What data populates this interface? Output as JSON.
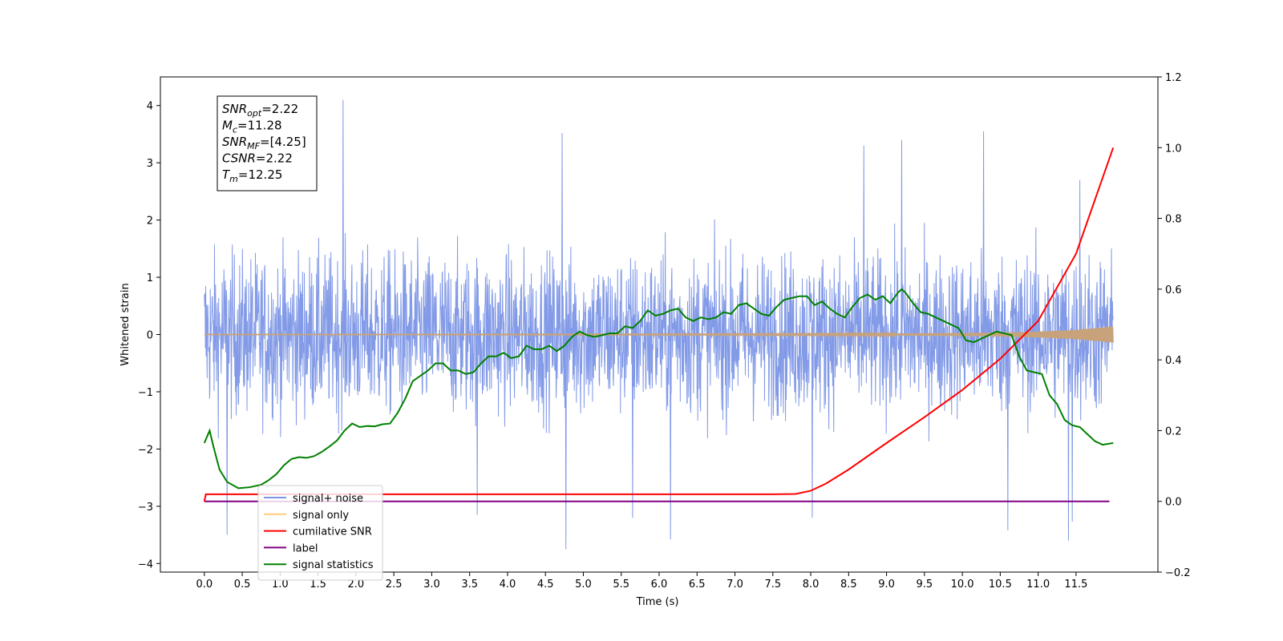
{
  "chart_data": {
    "type": "line",
    "xlabel": "Time (s)",
    "ylabel": "Whitened strain",
    "xlim": [
      -0.58,
      12.58
    ],
    "ylim": [
      -4.15,
      4.5
    ],
    "y2lim": [
      -0.2,
      1.2
    ],
    "x_ticks": [
      "0.0",
      "0.5",
      "1.0",
      "1.5",
      "2.0",
      "2.5",
      "3.0",
      "3.5",
      "4.0",
      "4.5",
      "5.0",
      "5.5",
      "6.0",
      "6.5",
      "7.0",
      "7.5",
      "8.0",
      "8.5",
      "9.0",
      "9.5",
      "10.0",
      "10.5",
      "11.0",
      "11.5"
    ],
    "y_ticks": [
      "−4",
      "−3",
      "−2",
      "−1",
      "0",
      "1",
      "2",
      "3",
      "4"
    ],
    "y2_ticks": [
      "−0.2",
      "0.0",
      "0.2",
      "0.4",
      "0.6",
      "0.8",
      "1.0",
      "1.2"
    ],
    "grid": false,
    "annotation": {
      "lines": [
        {
          "main": "SNR",
          "sub": "opt",
          "value": "=2.22"
        },
        {
          "main": "M",
          "sub": "c",
          "value": "=11.28"
        },
        {
          "main": "SNR",
          "sub": "MF",
          "value": "=[4.25]"
        },
        {
          "main": "CSNR",
          "sub": "",
          "value": "=2.22"
        },
        {
          "main": "T",
          "sub": "m",
          "value": "=12.25"
        }
      ]
    },
    "legend": {
      "position": "lower-left",
      "entries": [
        {
          "label": "signal+ noise",
          "color": "#7b95e6"
        },
        {
          "label": "signal only",
          "color": "#fdcb7b"
        },
        {
          "label": "cumilative SNR",
          "color": "#ff0000"
        },
        {
          "label": "label",
          "color": "#800080"
        },
        {
          "label": "signal statistics",
          "color": "#008000"
        }
      ]
    },
    "series": [
      {
        "name": "signal+ noise",
        "axis": "left",
        "color": "#7b95e6",
        "description_stats": {
          "x_start": 0.0,
          "x_end": 11.99,
          "typical_range": [
            -2.2,
            2.2
          ],
          "max": 4.1,
          "min": -3.75
        },
        "peaks": [
          {
            "x": 1.83,
            "y": 4.1
          },
          {
            "x": 10.28,
            "y": 3.55
          },
          {
            "x": 4.72,
            "y": 3.52
          },
          {
            "x": 9.2,
            "y": 3.4
          },
          {
            "x": 8.7,
            "y": 3.3
          },
          {
            "x": 11.55,
            "y": 2.7
          },
          {
            "x": 4.77,
            "y": -3.75
          },
          {
            "x": 11.4,
            "y": -3.6
          },
          {
            "x": 6.15,
            "y": -3.58
          },
          {
            "x": 0.3,
            "y": -3.5
          },
          {
            "x": 10.6,
            "y": -3.42
          },
          {
            "x": 11.45,
            "y": -3.27
          },
          {
            "x": 8.02,
            "y": -3.2
          },
          {
            "x": 5.65,
            "y": -3.2
          },
          {
            "x": 3.6,
            "y": -3.15
          }
        ]
      },
      {
        "name": "signal only",
        "axis": "left",
        "color": "#c8a27a",
        "x": [
          0,
          2,
          4,
          6,
          8,
          9,
          10,
          10.5,
          11,
          11.5,
          11.99
        ],
        "amplitude": [
          0.004,
          0.005,
          0.006,
          0.008,
          0.012,
          0.016,
          0.025,
          0.033,
          0.05,
          0.08,
          0.14
        ]
      },
      {
        "name": "cumilative SNR",
        "axis": "right",
        "color": "#ff0000",
        "x": [
          0,
          0.02,
          7.5,
          7.8,
          8.0,
          8.2,
          8.5,
          9.0,
          9.5,
          10.0,
          10.5,
          11.0,
          11.5,
          11.99
        ],
        "y": [
          0.0,
          0.02,
          0.02,
          0.021,
          0.03,
          0.05,
          0.09,
          0.165,
          0.238,
          0.315,
          0.403,
          0.51,
          0.7,
          1.0
        ]
      },
      {
        "name": "label",
        "axis": "right",
        "color": "#800080",
        "x": [
          0,
          11.94
        ],
        "y": [
          0.0,
          0.0
        ]
      },
      {
        "name": "signal statistics",
        "axis": "right",
        "color": "#008000",
        "x": [
          0.0,
          0.07,
          0.12,
          0.2,
          0.3,
          0.45,
          0.6,
          0.75,
          0.85,
          0.95,
          1.05,
          1.15,
          1.25,
          1.35,
          1.45,
          1.55,
          1.65,
          1.75,
          1.85,
          1.95,
          2.05,
          2.15,
          2.25,
          2.35,
          2.45,
          2.55,
          2.65,
          2.75,
          2.85,
          2.95,
          3.05,
          3.15,
          3.25,
          3.35,
          3.45,
          3.55,
          3.65,
          3.75,
          3.85,
          3.95,
          4.05,
          4.15,
          4.25,
          4.35,
          4.45,
          4.55,
          4.65,
          4.75,
          4.85,
          4.95,
          5.05,
          5.15,
          5.25,
          5.35,
          5.45,
          5.55,
          5.65,
          5.75,
          5.85,
          5.95,
          6.05,
          6.15,
          6.25,
          6.35,
          6.45,
          6.55,
          6.65,
          6.75,
          6.85,
          6.95,
          7.05,
          7.15,
          7.25,
          7.35,
          7.45,
          7.55,
          7.65,
          7.75,
          7.85,
          7.95,
          8.05,
          8.15,
          8.25,
          8.35,
          8.45,
          8.55,
          8.65,
          8.75,
          8.85,
          8.95,
          9.05,
          9.15,
          9.2,
          9.25,
          9.35,
          9.45,
          9.55,
          9.65,
          9.75,
          9.85,
          9.95,
          10.05,
          10.15,
          10.25,
          10.35,
          10.45,
          10.55,
          10.65,
          10.75,
          10.85,
          10.95,
          11.05,
          11.15,
          11.25,
          11.35,
          11.45,
          11.55,
          11.65,
          11.75,
          11.85,
          11.99
        ],
        "y": [
          0.165,
          0.2,
          0.155,
          0.09,
          0.055,
          0.037,
          0.04,
          0.047,
          0.06,
          0.077,
          0.102,
          0.12,
          0.125,
          0.123,
          0.128,
          0.14,
          0.155,
          0.172,
          0.2,
          0.22,
          0.21,
          0.213,
          0.212,
          0.218,
          0.22,
          0.25,
          0.29,
          0.34,
          0.355,
          0.37,
          0.39,
          0.39,
          0.37,
          0.37,
          0.36,
          0.365,
          0.39,
          0.41,
          0.41,
          0.42,
          0.405,
          0.41,
          0.44,
          0.43,
          0.43,
          0.44,
          0.425,
          0.44,
          0.465,
          0.48,
          0.47,
          0.465,
          0.47,
          0.475,
          0.475,
          0.495,
          0.49,
          0.51,
          0.54,
          0.525,
          0.53,
          0.54,
          0.545,
          0.52,
          0.51,
          0.52,
          0.515,
          0.52,
          0.535,
          0.53,
          0.555,
          0.56,
          0.545,
          0.53,
          0.525,
          0.55,
          0.57,
          0.575,
          0.58,
          0.58,
          0.555,
          0.565,
          0.545,
          0.53,
          0.52,
          0.55,
          0.575,
          0.585,
          0.57,
          0.58,
          0.56,
          0.59,
          0.6,
          0.59,
          0.56,
          0.535,
          0.53,
          0.52,
          0.51,
          0.5,
          0.49,
          0.455,
          0.45,
          0.46,
          0.47,
          0.48,
          0.475,
          0.47,
          0.41,
          0.37,
          0.365,
          0.36,
          0.3,
          0.275,
          0.23,
          0.215,
          0.21,
          0.19,
          0.17,
          0.16,
          0.165
        ]
      }
    ]
  }
}
